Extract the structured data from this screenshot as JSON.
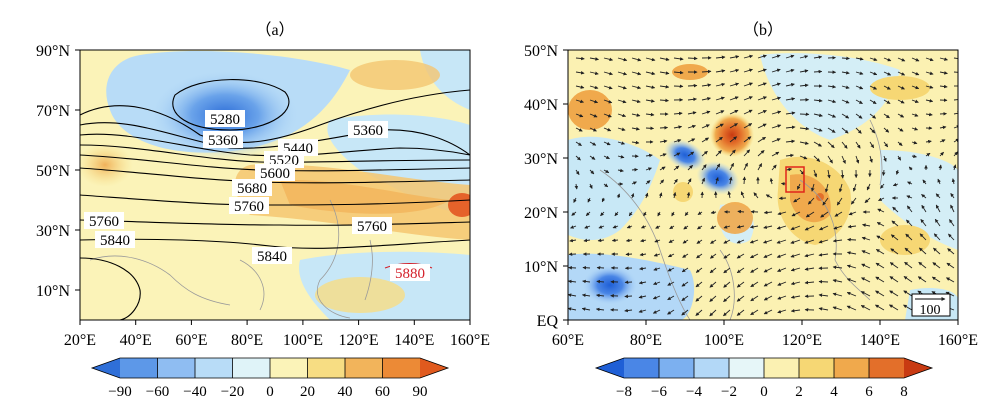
{
  "figure": {
    "panel_a": {
      "label": "（a）",
      "lon_ticks": [
        "20°E",
        "40°E",
        "60°E",
        "80°E",
        "100°E",
        "120°E",
        "140°E",
        "160°E"
      ],
      "lat_ticks": [
        "90°N",
        "70°N",
        "50°N",
        "30°N",
        "10°N"
      ],
      "contour_labels": [
        {
          "text": "5280"
        },
        {
          "text": "5360"
        },
        {
          "text": "5360"
        },
        {
          "text": "5440"
        },
        {
          "text": "5520"
        },
        {
          "text": "5600"
        },
        {
          "text": "5680"
        },
        {
          "text": "5760"
        },
        {
          "text": "5760"
        },
        {
          "text": "5760"
        },
        {
          "text": "5840"
        },
        {
          "text": "5840"
        }
      ],
      "highlight_label": "5880",
      "colorbar_ticks": [
        "−90",
        "−60",
        "−40",
        "−20",
        "0",
        "20",
        "40",
        "60",
        "90"
      ],
      "colorbar_colors": [
        "#2f6fd8",
        "#5d98e8",
        "#8fbdf2",
        "#b8dcf7",
        "#dff3f8",
        "#fbf3b8",
        "#f7dd83",
        "#f2b45b",
        "#ec8a36",
        "#e05a1e"
      ]
    },
    "panel_b": {
      "label": "（b）",
      "lon_ticks": [
        "60°E",
        "80°E",
        "100°E",
        "120°E",
        "140°E",
        "160°E"
      ],
      "lat_ticks": [
        "50°N",
        "40°N",
        "30°N",
        "20°N",
        "10°N",
        "EQ"
      ],
      "reference_vector": "100",
      "colorbar_ticks": [
        "−8",
        "−6",
        "−4",
        "−2",
        "0",
        "2",
        "4",
        "6",
        "8"
      ],
      "colorbar_colors": [
        "#1f5fd6",
        "#4a86e6",
        "#7cb0f0",
        "#b3d8f7",
        "#e6f6f8",
        "#fbf1b2",
        "#f6d774",
        "#f0a94c",
        "#e36f2a",
        "#c83a12"
      ]
    }
  }
}
